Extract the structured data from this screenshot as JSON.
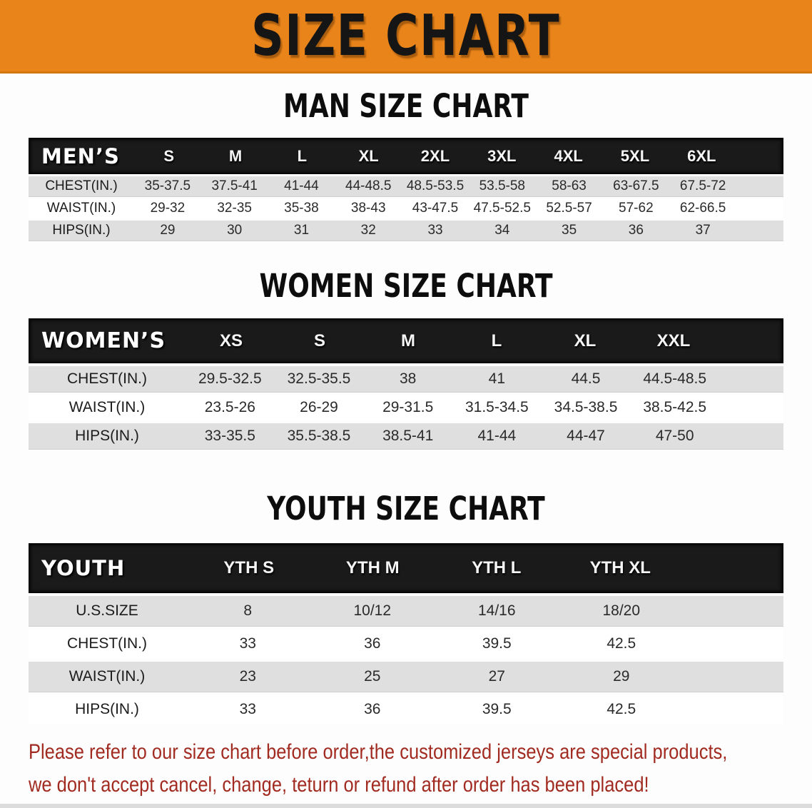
{
  "banner": {
    "title": "SIZE CHART"
  },
  "colors": {
    "banner_bg": "#E8841A",
    "header_bar": "#1A1A1A",
    "row_shade": "#DFDFDF",
    "notice_red": "#A12B20"
  },
  "sections": [
    {
      "id": "men",
      "title": "MAN SIZE CHART",
      "table": {
        "header_label": "MEN’S",
        "columns": [
          "S",
          "M",
          "L",
          "XL",
          "2XL",
          "3XL",
          "4XL",
          "5XL",
          "6XL"
        ],
        "rows": [
          {
            "label": "CHEST(IN.)",
            "values": [
              "35-37.5",
              "37.5-41",
              "41-44",
              "44-48.5",
              "48.5-53.5",
              "53.5-58",
              "58-63",
              "63-67.5",
              "67.5-72"
            ]
          },
          {
            "label": "WAIST(IN.)",
            "values": [
              "29-32",
              "32-35",
              "35-38",
              "38-43",
              "43-47.5",
              "47.5-52.5",
              "52.5-57",
              "57-62",
              "62-66.5"
            ]
          },
          {
            "label": "HIPS(IN.)",
            "values": [
              "29",
              "30",
              "31",
              "32",
              "33",
              "34",
              "35",
              "36",
              "37"
            ]
          }
        ]
      }
    },
    {
      "id": "women",
      "title": "WOMEN SIZE CHART",
      "table": {
        "header_label": "WOMEN’S",
        "columns": [
          "XS",
          "S",
          "M",
          "L",
          "XL",
          "XXL"
        ],
        "rows": [
          {
            "label": "CHEST(IN.)",
            "values": [
              "29.5-32.5",
              "32.5-35.5",
              "38",
              "41",
              "44.5",
              "44.5-48.5"
            ]
          },
          {
            "label": "WAIST(IN.)",
            "values": [
              "23.5-26",
              "26-29",
              "29-31.5",
              "31.5-34.5",
              "34.5-38.5",
              "38.5-42.5"
            ]
          },
          {
            "label": "HIPS(IN.)",
            "values": [
              "33-35.5",
              "35.5-38.5",
              "38.5-41",
              "41-44",
              "44-47",
              "47-50"
            ]
          }
        ]
      }
    },
    {
      "id": "youth",
      "title": "YOUTH SIZE CHART",
      "table": {
        "header_label": "YOUTH",
        "columns": [
          "YTH S",
          "YTH M",
          "YTH L",
          "YTH XL"
        ],
        "rows": [
          {
            "label": "U.S.SIZE",
            "values": [
              "8",
              "10/12",
              "14/16",
              "18/20"
            ]
          },
          {
            "label": "CHEST(IN.)",
            "values": [
              "33",
              "36",
              "39.5",
              "42.5"
            ]
          },
          {
            "label": "WAIST(IN.)",
            "values": [
              "23",
              "25",
              "27",
              "29"
            ]
          },
          {
            "label": "HIPS(IN.)",
            "values": [
              "33",
              "36",
              "39.5",
              "42.5"
            ]
          }
        ]
      }
    }
  ],
  "notice": {
    "line1": "Please refer to our size chart before order,the customized jerseys are special products,",
    "line2": "we don't accept cancel, change, teturn or refund after order has been placed!"
  }
}
